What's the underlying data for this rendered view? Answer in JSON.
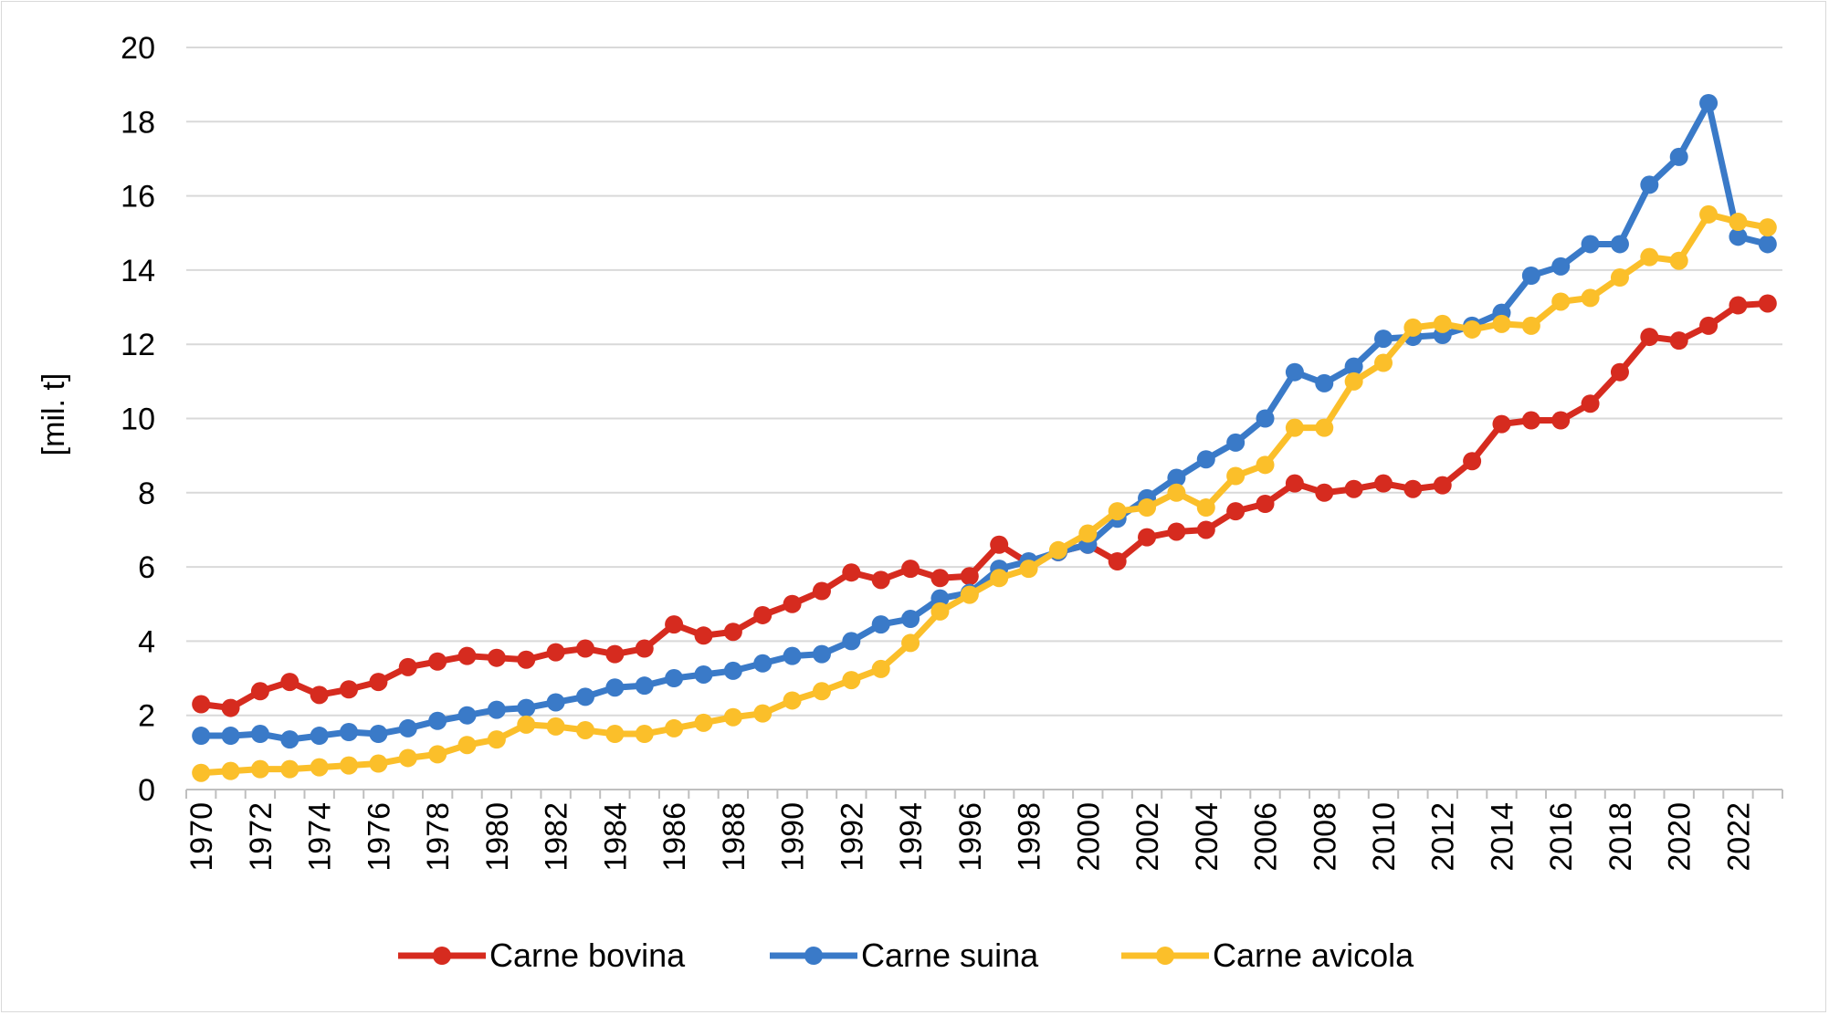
{
  "chart_data": {
    "type": "line",
    "title": "",
    "xlabel": "",
    "ylabel": "[mil. t]",
    "ylim": [
      0,
      20
    ],
    "yticks": [
      0,
      2,
      4,
      6,
      8,
      10,
      12,
      14,
      16,
      18,
      20
    ],
    "grid": true,
    "legend_position": "bottom",
    "x": [
      1970,
      1971,
      1972,
      1973,
      1974,
      1975,
      1976,
      1977,
      1978,
      1979,
      1980,
      1981,
      1982,
      1983,
      1984,
      1985,
      1986,
      1987,
      1988,
      1989,
      1990,
      1991,
      1992,
      1993,
      1994,
      1995,
      1996,
      1997,
      1998,
      1999,
      2000,
      2001,
      2002,
      2003,
      2004,
      2005,
      2006,
      2007,
      2008,
      2009,
      2010,
      2011,
      2012,
      2013,
      2014,
      2015,
      2016,
      2017,
      2018,
      2019,
      2020,
      2021,
      2022,
      2023
    ],
    "xtick_labels": [
      "1970",
      "1972",
      "1974",
      "1976",
      "1978",
      "1980",
      "1982",
      "1984",
      "1986",
      "1988",
      "1990",
      "1992",
      "1994",
      "1996",
      "1998",
      "2000",
      "2002",
      "2004",
      "2006",
      "2008",
      "2010",
      "2012",
      "2014",
      "2016",
      "2018",
      "2020",
      "2022"
    ],
    "series": [
      {
        "name": "Carne bovina",
        "color": "#d62b1f",
        "values": [
          2.3,
          2.2,
          2.65,
          2.9,
          2.55,
          2.7,
          2.9,
          3.3,
          3.45,
          3.6,
          3.55,
          3.5,
          3.7,
          3.8,
          3.65,
          3.8,
          4.45,
          4.15,
          4.25,
          4.7,
          5.0,
          5.35,
          5.85,
          5.65,
          5.95,
          5.7,
          5.75,
          6.6,
          6.1,
          6.4,
          6.6,
          6.15,
          6.8,
          6.95,
          7.0,
          7.5,
          7.7,
          8.25,
          8.0,
          8.1,
          8.25,
          8.1,
          8.2,
          8.85,
          9.85,
          9.95,
          9.95,
          10.4,
          11.25,
          12.2,
          12.1,
          12.5,
          13.05,
          13.1
        ]
      },
      {
        "name": "Carne suina",
        "color": "#3a7ac8",
        "values": [
          1.45,
          1.45,
          1.5,
          1.35,
          1.45,
          1.55,
          1.5,
          1.65,
          1.85,
          2.0,
          2.15,
          2.2,
          2.35,
          2.5,
          2.75,
          2.8,
          3.0,
          3.1,
          3.2,
          3.4,
          3.6,
          3.65,
          4.0,
          4.45,
          4.6,
          5.15,
          5.3,
          5.95,
          6.15,
          6.4,
          6.6,
          7.3,
          7.85,
          8.4,
          8.9,
          9.35,
          10.0,
          11.25,
          10.95,
          11.4,
          12.15,
          12.2,
          12.25,
          12.5,
          12.85,
          13.85,
          14.1,
          14.7,
          14.7,
          16.3,
          17.05,
          18.5,
          14.9,
          14.7
        ]
      },
      {
        "name": "Carne avicola",
        "color": "#fbbf2a",
        "values": [
          0.45,
          0.5,
          0.55,
          0.55,
          0.6,
          0.65,
          0.7,
          0.85,
          0.95,
          1.2,
          1.35,
          1.75,
          1.7,
          1.6,
          1.5,
          1.5,
          1.65,
          1.8,
          1.95,
          2.05,
          2.4,
          2.65,
          2.95,
          3.25,
          3.95,
          4.8,
          5.25,
          5.7,
          5.95,
          6.45,
          6.9,
          7.5,
          7.6,
          8.0,
          7.6,
          8.45,
          8.75,
          9.75,
          9.75,
          11.0,
          11.5,
          12.45,
          12.55,
          12.4,
          12.55,
          12.5,
          13.15,
          13.25,
          13.8,
          14.35,
          14.25,
          15.5,
          15.3,
          15.15
        ]
      }
    ]
  }
}
